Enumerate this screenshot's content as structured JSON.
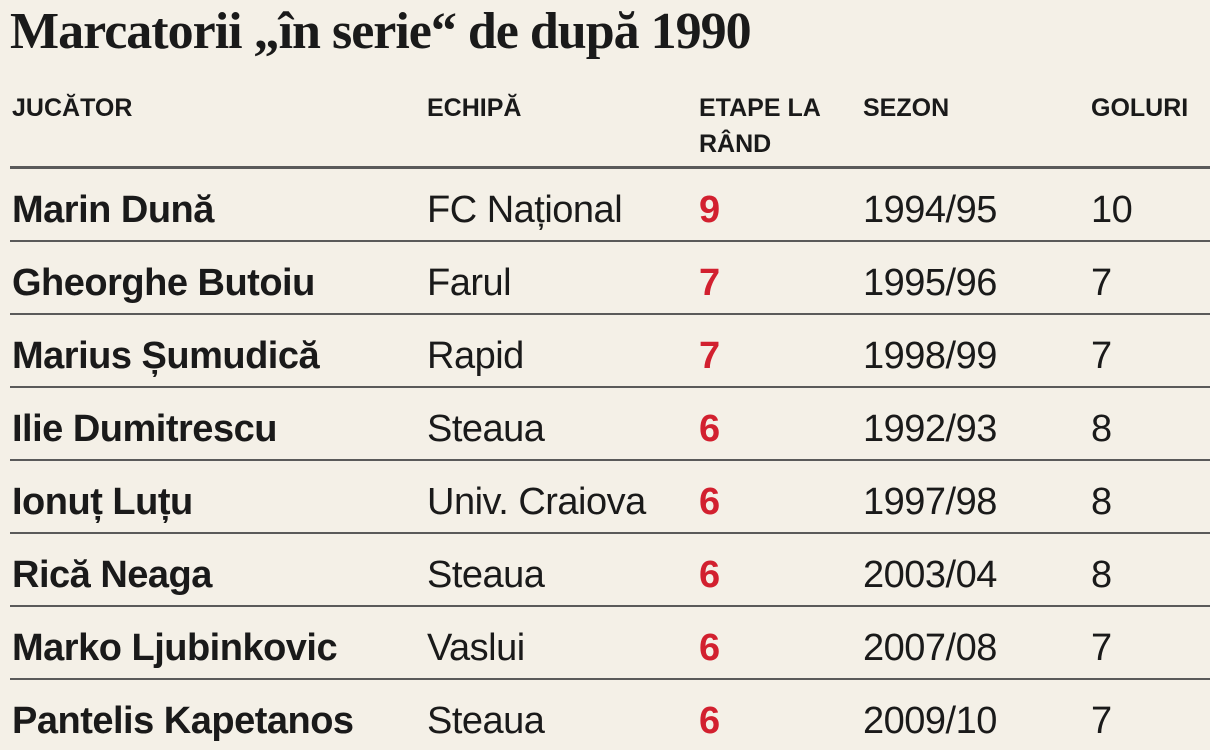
{
  "title": "Marcatorii „în serie“ de după 1990",
  "table": {
    "headers": [
      "JUCĂTOR",
      "ECHIPĂ",
      "ETAPE LA RÂND",
      "SEZON",
      "GOLURI"
    ],
    "rows": [
      [
        "Marin Dună",
        "FC Național",
        9,
        "1994/95",
        10
      ],
      [
        "Gheorghe Butoiu",
        "Farul",
        7,
        "1995/96",
        7
      ],
      [
        "Marius Șumudică",
        "Rapid",
        7,
        "1998/99",
        7
      ],
      [
        "Ilie Dumitrescu",
        "Steaua",
        6,
        "1992/93",
        8
      ],
      [
        "Ionuț Luțu",
        "Univ. Craiova",
        6,
        "1997/98",
        8
      ],
      [
        "Rică Neaga",
        "Steaua",
        6,
        "2003/04",
        8
      ],
      [
        "Marko Ljubinkovic",
        "Vaslui",
        6,
        "2007/08",
        7
      ],
      [
        "Pantelis Kapetanos",
        "Steaua",
        6,
        "2009/10",
        7
      ]
    ]
  }
}
